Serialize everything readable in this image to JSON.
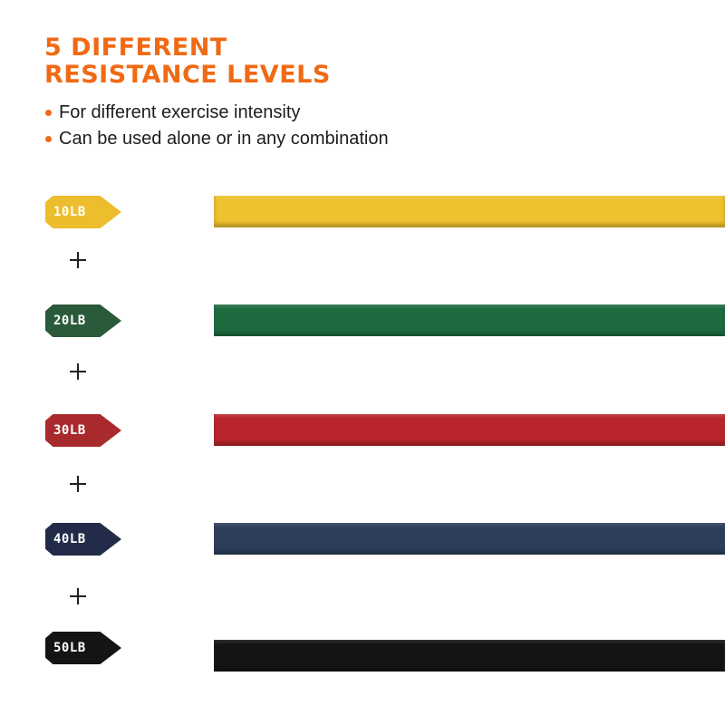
{
  "header": {
    "title_line1": "5 DIFFERENT",
    "title_line2": "RESISTANCE LEVELS",
    "accent_color": "#f06a14",
    "bullets": [
      "For different exercise intensity",
      "Can be used alone or in any combination"
    ]
  },
  "levels": [
    {
      "label": "10LB",
      "tag_color": "#ecbd2c",
      "band_color": "#eec22e"
    },
    {
      "label": "20LB",
      "tag_color": "#2a5a3a",
      "band_color": "#1d6b3f"
    },
    {
      "label": "30LB",
      "tag_color": "#a82a2c",
      "band_color": "#b9252b"
    },
    {
      "label": "40LB",
      "tag_color": "#222c48",
      "band_color": "#2d3d5c"
    },
    {
      "label": "50LB",
      "tag_color": "#141414",
      "band_color": "#141416"
    }
  ],
  "separator_icon": "plus-icon"
}
